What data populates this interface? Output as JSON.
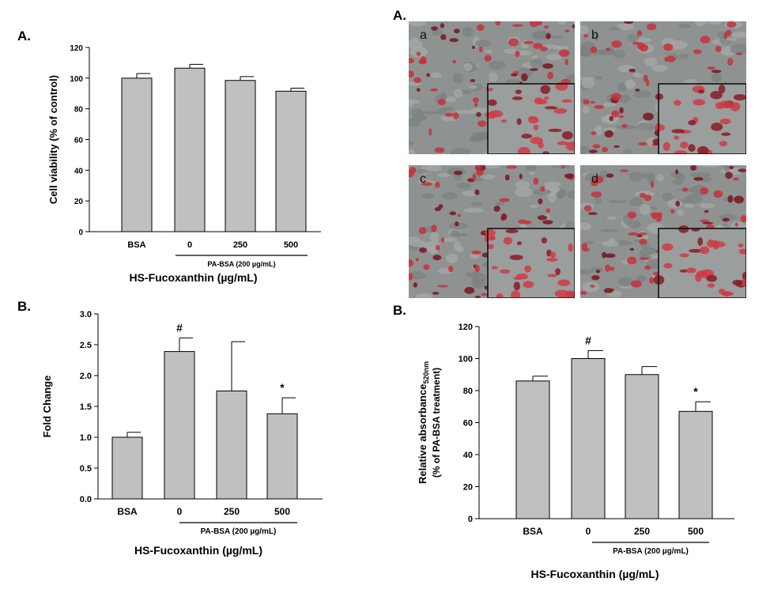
{
  "panel_labels": {
    "top_left": "A.",
    "bottom_left": "B.",
    "top_right": "A.",
    "bottom_right": "B."
  },
  "micrographs": [
    {
      "label": "a"
    },
    {
      "label": "b"
    },
    {
      "label": "c"
    },
    {
      "label": "d"
    }
  ],
  "chart_data": [
    {
      "type": "bar",
      "panel": "A.",
      "categories": [
        "BSA",
        "0",
        "250",
        "500"
      ],
      "values": [
        100,
        106.5,
        98.5,
        91.5
      ],
      "errors": [
        3,
        2.5,
        2.5,
        2
      ],
      "marks": [
        "",
        "",
        "",
        ""
      ],
      "ylabel": "Cell viability (% of control)",
      "xlabel": "HS-Fucoxanthin (µg/mL)",
      "group_label": "PA-BSA (200 µg/mL)",
      "ylim": [
        0,
        120
      ],
      "yticks": [
        "0",
        "20",
        "40",
        "60",
        "80",
        "100",
        "120"
      ]
    },
    {
      "type": "bar",
      "panel": "B.",
      "categories": [
        "BSA",
        "0",
        "250",
        "500"
      ],
      "values": [
        1.0,
        2.39,
        1.75,
        1.38
      ],
      "errors": [
        0.08,
        0.22,
        0.8,
        0.26
      ],
      "marks": [
        "",
        "#",
        "",
        "*"
      ],
      "ylabel": "Fold Change",
      "xlabel": "HS-Fucoxanthin (µg/mL)",
      "group_label": "PA-BSA (200 µg/mL)",
      "ylim": [
        0,
        3.0
      ],
      "yticks": [
        "0.0",
        "0.5",
        "1.0",
        "1.5",
        "2.0",
        "2.5",
        "3.0"
      ]
    },
    {
      "type": "bar",
      "panel": "B.",
      "categories": [
        "BSA",
        "0",
        "250",
        "500"
      ],
      "values": [
        86,
        100,
        90,
        67
      ],
      "errors": [
        3,
        5,
        5,
        6
      ],
      "marks": [
        "",
        "#",
        "",
        "*"
      ],
      "ylabel": "Relative absorbance",
      "ylabel_sub": "520nm",
      "ylabel2": "(% of PA-BSA treatment)",
      "xlabel": "HS-Fucoxanthin (µg/mL)",
      "group_label": "PA-BSA (200 µg/mL)",
      "ylim": [
        0,
        120
      ],
      "yticks": [
        "0",
        "20",
        "40",
        "60",
        "80",
        "100",
        "120"
      ]
    }
  ]
}
